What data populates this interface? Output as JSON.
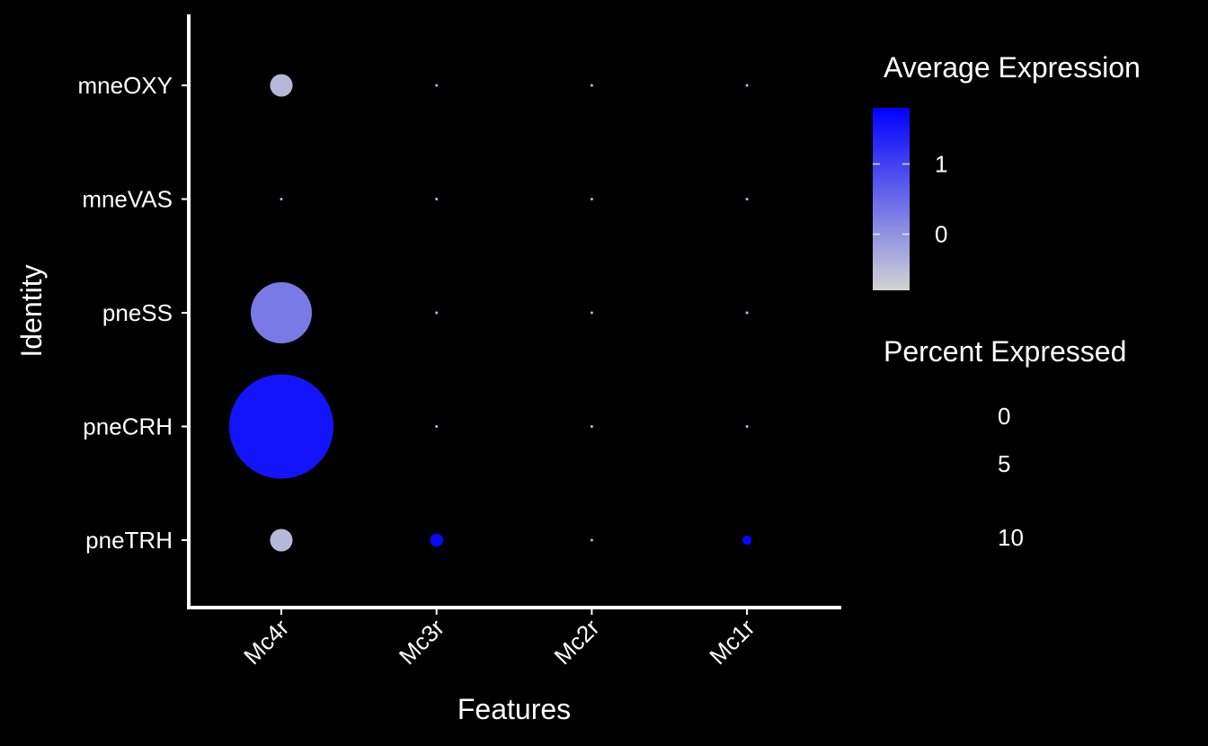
{
  "chart_data": {
    "type": "scatter",
    "subtype": "dot-plot",
    "xlabel": "Features",
    "ylabel": "Identity",
    "features": [
      "Mc4r",
      "Mc3r",
      "Mc2r",
      "Mc1r"
    ],
    "identities": [
      "mneOXY",
      "mneVAS",
      "pneSS",
      "pneCRH",
      "pneTRH"
    ],
    "points": [
      {
        "feature": "Mc4r",
        "identity": "mneOXY",
        "avg_exp": -0.45,
        "pct_exp": 0.6
      },
      {
        "feature": "Mc3r",
        "identity": "mneOXY",
        "avg_exp": -0.5,
        "pct_exp": 0
      },
      {
        "feature": "Mc2r",
        "identity": "mneOXY",
        "avg_exp": -0.5,
        "pct_exp": 0
      },
      {
        "feature": "Mc1r",
        "identity": "mneOXY",
        "avg_exp": -0.5,
        "pct_exp": 0
      },
      {
        "feature": "Mc4r",
        "identity": "mneVAS",
        "avg_exp": -0.5,
        "pct_exp": 0
      },
      {
        "feature": "Mc3r",
        "identity": "mneVAS",
        "avg_exp": -0.5,
        "pct_exp": 0
      },
      {
        "feature": "Mc2r",
        "identity": "mneVAS",
        "avg_exp": -0.5,
        "pct_exp": 0
      },
      {
        "feature": "Mc1r",
        "identity": "mneVAS",
        "avg_exp": -0.5,
        "pct_exp": 0
      },
      {
        "feature": "Mc4r",
        "identity": "pneSS",
        "avg_exp": 0.3,
        "pct_exp": 4.4
      },
      {
        "feature": "Mc3r",
        "identity": "pneSS",
        "avg_exp": -0.5,
        "pct_exp": 0
      },
      {
        "feature": "Mc2r",
        "identity": "pneSS",
        "avg_exp": -0.5,
        "pct_exp": 0
      },
      {
        "feature": "Mc1r",
        "identity": "pneSS",
        "avg_exp": -0.5,
        "pct_exp": 0
      },
      {
        "feature": "Mc4r",
        "identity": "pneCRH",
        "avg_exp": 1.55,
        "pct_exp": 12.8
      },
      {
        "feature": "Mc3r",
        "identity": "pneCRH",
        "avg_exp": -0.5,
        "pct_exp": 0
      },
      {
        "feature": "Mc2r",
        "identity": "pneCRH",
        "avg_exp": -0.5,
        "pct_exp": 0
      },
      {
        "feature": "Mc1r",
        "identity": "pneCRH",
        "avg_exp": -0.5,
        "pct_exp": 0
      },
      {
        "feature": "Mc4r",
        "identity": "pneTRH",
        "avg_exp": -0.45,
        "pct_exp": 0.6
      },
      {
        "feature": "Mc3r",
        "identity": "pneTRH",
        "avg_exp": 1.7,
        "pct_exp": 0.2
      },
      {
        "feature": "Mc2r",
        "identity": "pneTRH",
        "avg_exp": -0.5,
        "pct_exp": 0
      },
      {
        "feature": "Mc1r",
        "identity": "pneTRH",
        "avg_exp": 1.7,
        "pct_exp": 0.1
      }
    ],
    "color_scale": {
      "title": "Average Expression",
      "low_color": "#d3d3d3",
      "high_color": "#0000ff",
      "range": [
        -0.8,
        1.8
      ],
      "ticks": [
        {
          "value": 1,
          "label": "1"
        },
        {
          "value": 0,
          "label": "0"
        }
      ]
    },
    "size_scale": {
      "title": "Percent Expressed",
      "range": [
        0,
        12.8
      ],
      "ticks": [
        {
          "value": 0,
          "label": "0"
        },
        {
          "value": 5,
          "label": "5"
        },
        {
          "value": 10,
          "label": "10"
        }
      ]
    },
    "legend_position": "right",
    "grid": false,
    "colors": {
      "background": "#000000",
      "foreground": "#ffffff"
    }
  }
}
